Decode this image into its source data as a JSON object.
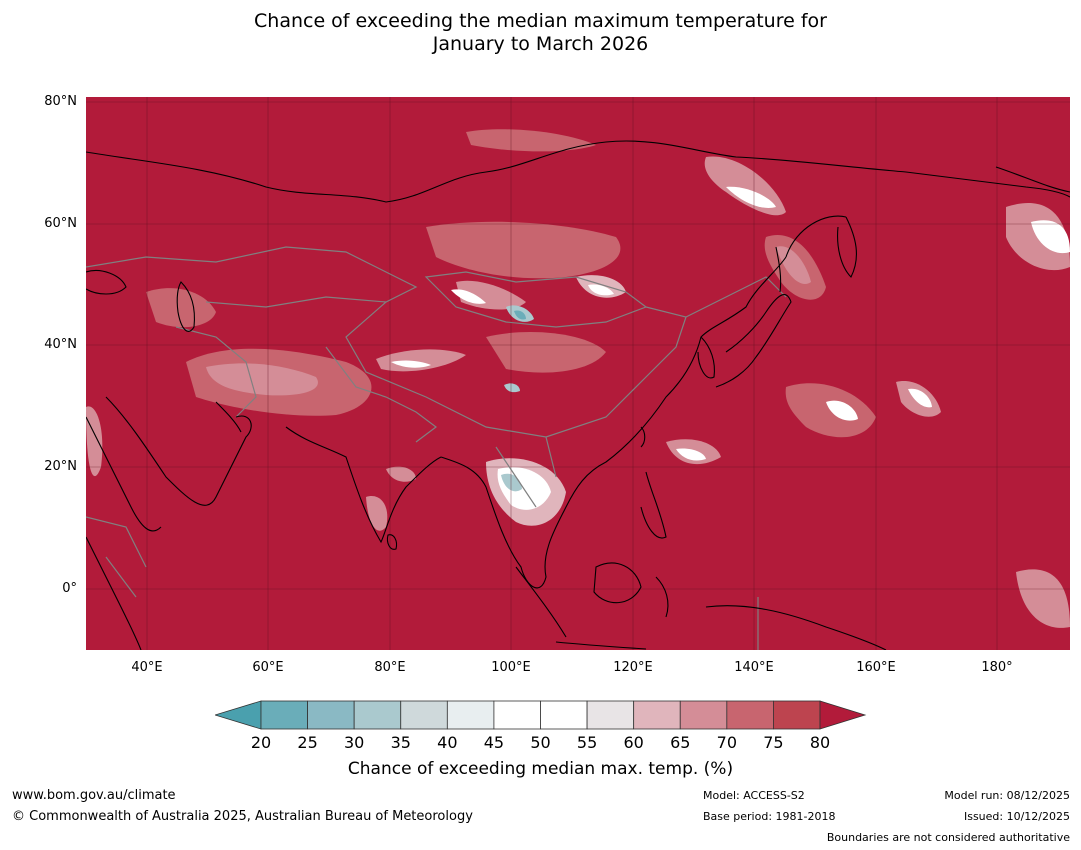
{
  "title": {
    "line1": "Chance of exceeding the median maximum temperature for",
    "line2": "January to March 2026"
  },
  "map": {
    "lat_labels": [
      "80°N",
      "60°N",
      "40°N",
      "20°N",
      "0°"
    ],
    "lon_labels": [
      "40°E",
      "60°E",
      "80°E",
      "100°E",
      "120°E",
      "140°E",
      "160°E",
      "180°"
    ],
    "lat_range": [
      -10,
      81
    ],
    "lon_range": [
      30,
      192
    ],
    "background_color": "#b21b3a",
    "coastline_color": "#000000",
    "border_color": "#808080",
    "gridlines": true
  },
  "colorbar": {
    "ticks": [
      "20",
      "25",
      "30",
      "35",
      "40",
      "45",
      "50",
      "55",
      "60",
      "65",
      "70",
      "75",
      "80"
    ],
    "colors": [
      "#6aadb9",
      "#8ab9c4",
      "#aac9ce",
      "#cfd9db",
      "#e8eef0",
      "#ffffff",
      "#ffffff",
      "#e8e4e6",
      "#e0b5bc",
      "#d48d97",
      "#c8656f",
      "#bd444f"
    ],
    "under_color": "#4aa0ae",
    "over_color": "#b21b3a",
    "label": "Chance of exceeding median max. temp. (%)"
  },
  "footer": {
    "website": "www.bom.gov.au/climate",
    "copyright": "© Commonwealth of Australia 2025, Australian Bureau of Meteorology",
    "model": "Model: ACCESS-S2",
    "base_period": "Base period: 1981-2018",
    "model_run": "Model run: 08/12/2025",
    "issued": "Issued: 10/12/2025",
    "disclaimer": "Boundaries are not considered authoritative"
  }
}
